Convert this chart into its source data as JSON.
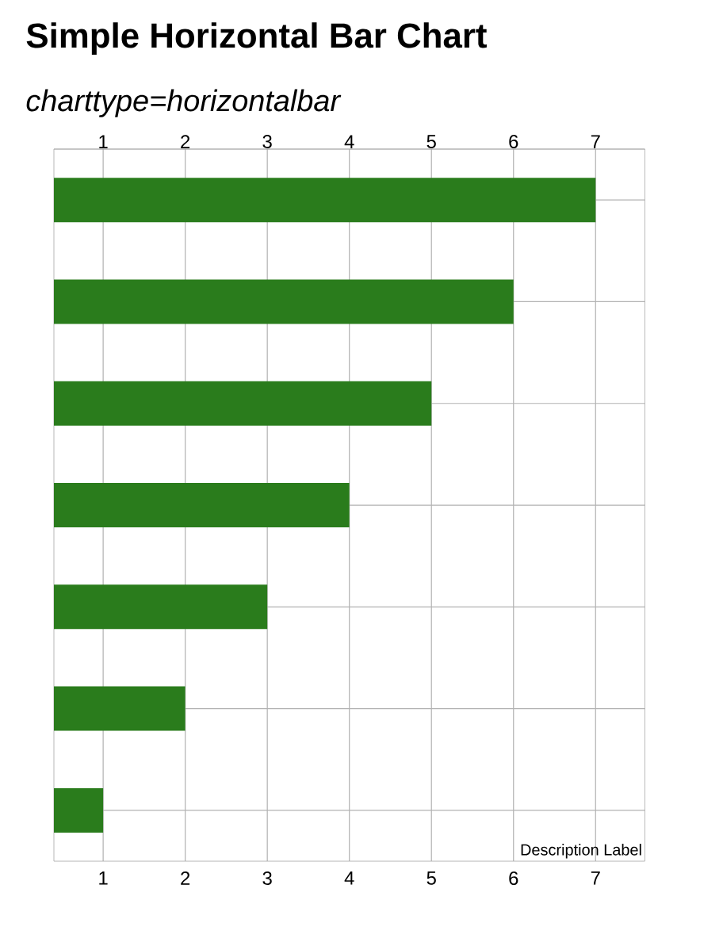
{
  "chart_data": {
    "type": "bar",
    "orientation": "horizontal",
    "title": "Simple Horizontal Bar Chart",
    "subtitle": "charttype=horizontalbar",
    "categories": [
      null,
      null,
      null,
      null,
      null,
      null,
      null
    ],
    "values": [
      7,
      6,
      5,
      4,
      3,
      2,
      1
    ],
    "color": "#2a7c1c",
    "xlim": [
      0.4,
      7.6
    ],
    "xticks": [
      1,
      2,
      3,
      4,
      5,
      6,
      7
    ],
    "x2lim": [
      0.4,
      7.6
    ],
    "x2ticks": [
      1,
      2,
      3,
      4,
      5,
      6,
      7
    ],
    "grid": true,
    "tick_labels": "x",
    "annotations": [
      "Description Label"
    ]
  }
}
